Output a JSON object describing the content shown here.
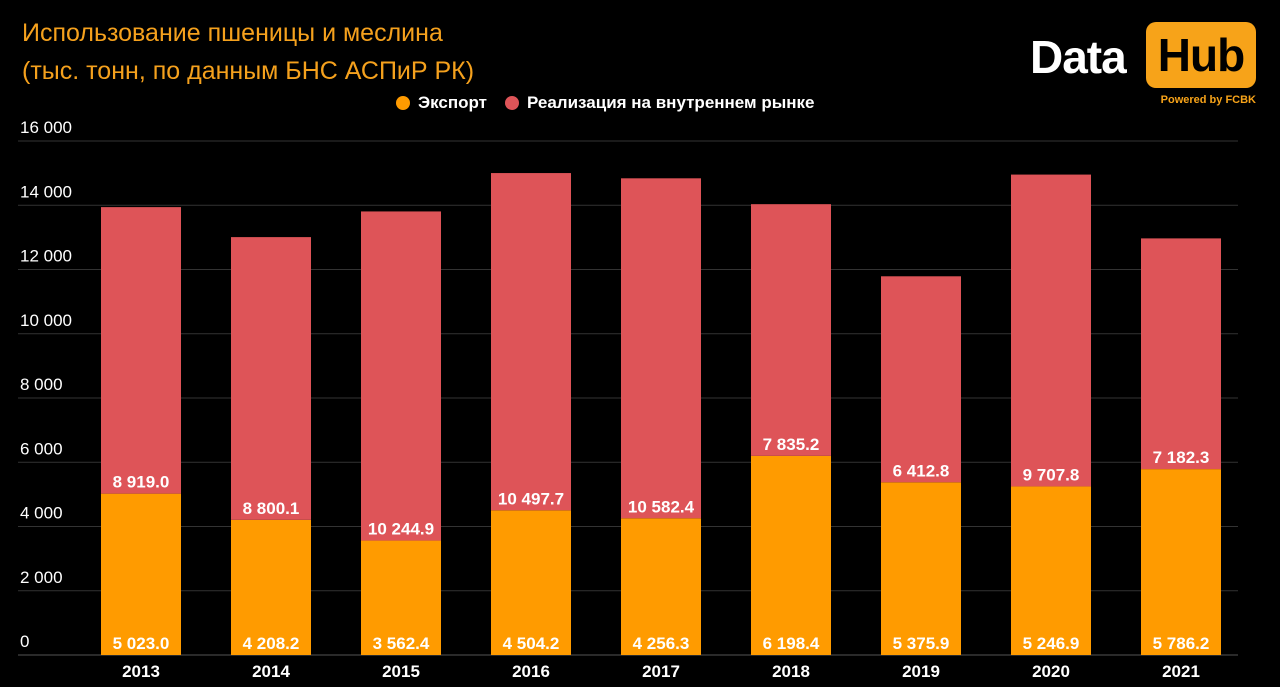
{
  "title_line1": "Использование пшеницы и меслина",
  "title_line2": "(тыс. тонн, по данным БНС АСПиР РК)",
  "logo": {
    "word1": "Data",
    "word2": "Hub",
    "powered": "Powered by FCBK"
  },
  "colors": {
    "background": "#000000",
    "accent": "#f7a319",
    "export": "#ff9b00",
    "domestic": "#de5458",
    "grid": "#333333"
  },
  "chart_data": {
    "type": "bar",
    "stacked": true,
    "categories": [
      "2013",
      "2014",
      "2015",
      "2016",
      "2017",
      "2018",
      "2019",
      "2020",
      "2021"
    ],
    "series": [
      {
        "name": "Экспорт",
        "values": [
          5023.0,
          4208.2,
          3562.4,
          4504.2,
          4256.3,
          6198.4,
          5375.9,
          5246.9,
          5786.2
        ],
        "labels": [
          "5 023.0",
          "4 208.2",
          "3 562.4",
          "4 504.2",
          "4 256.3",
          "6 198.4",
          "5 375.9",
          "5 246.9",
          "5 786.2"
        ]
      },
      {
        "name": "Реализация на внутреннем рынке",
        "values": [
          8919.0,
          8800.1,
          10244.9,
          10497.7,
          10582.4,
          7835.2,
          6412.8,
          9707.8,
          7182.3
        ],
        "labels": [
          "8 919.0",
          "8 800.1",
          "10 244.9",
          "10 497.7",
          "10 582.4",
          "7 835.2",
          "6 412.8",
          "9 707.8",
          "7 182.3"
        ]
      }
    ],
    "y_ticks": [
      0,
      2000,
      4000,
      6000,
      8000,
      10000,
      12000,
      14000,
      16000
    ],
    "y_tick_labels": [
      "0",
      "2 000",
      "4 000",
      "6 000",
      "8 000",
      "10 000",
      "12 000",
      "14 000",
      "16 000"
    ],
    "ylim": [
      0,
      16000
    ],
    "grid": true,
    "legend_position": "top-center"
  }
}
